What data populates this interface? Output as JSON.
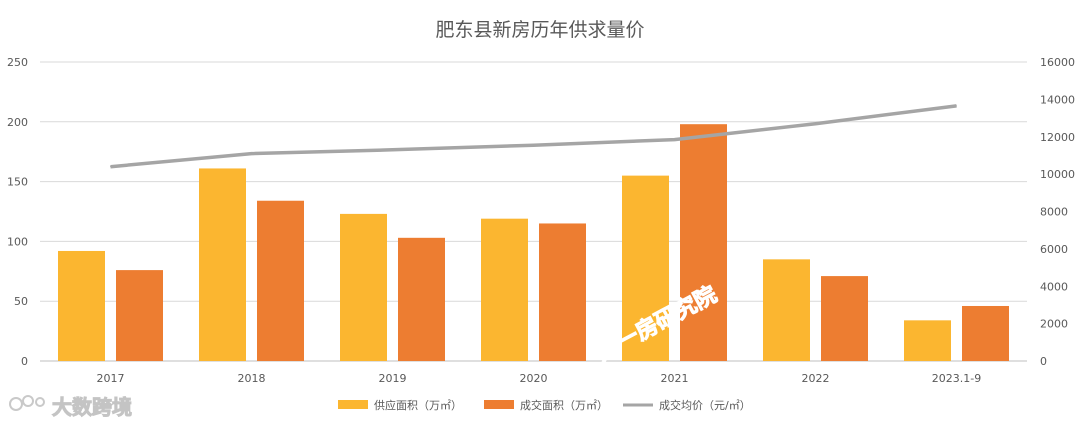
{
  "chart_data": {
    "type": "bar",
    "title": "肥东县新房历年供求量价",
    "categories": [
      "2017",
      "2018",
      "2019",
      "2020",
      "2021",
      "2022",
      "2023.1-9"
    ],
    "series": [
      {
        "name": "供应面积（万㎡）",
        "type": "bar",
        "axis": "left",
        "color": "#FBB630",
        "values": [
          92,
          161,
          123,
          119,
          155,
          85,
          34
        ]
      },
      {
        "name": "成交面积（万㎡）",
        "type": "bar",
        "axis": "left",
        "color": "#ED7D31",
        "values": [
          76,
          134,
          103,
          115,
          198,
          71,
          46
        ]
      },
      {
        "name": "成交均价（元/㎡）",
        "type": "line",
        "axis": "right",
        "color": "#A5A5A5",
        "values": [
          10400,
          11100,
          11300,
          11550,
          11850,
          12700,
          13650
        ]
      }
    ],
    "y_left": {
      "min": 0,
      "max": 250,
      "ticks": [
        "0",
        "50",
        "100",
        "150",
        "200",
        "250"
      ]
    },
    "y_right": {
      "min": 0,
      "max": 16000,
      "ticks": [
        "0",
        "2000",
        "4000",
        "6000",
        "8000",
        "10000",
        "12000",
        "14000",
        "16000"
      ]
    },
    "grid": true,
    "legend_position": "bottom"
  },
  "watermarks": {
    "center_text": "第一房研究院",
    "logo_text": "大数跨境"
  }
}
